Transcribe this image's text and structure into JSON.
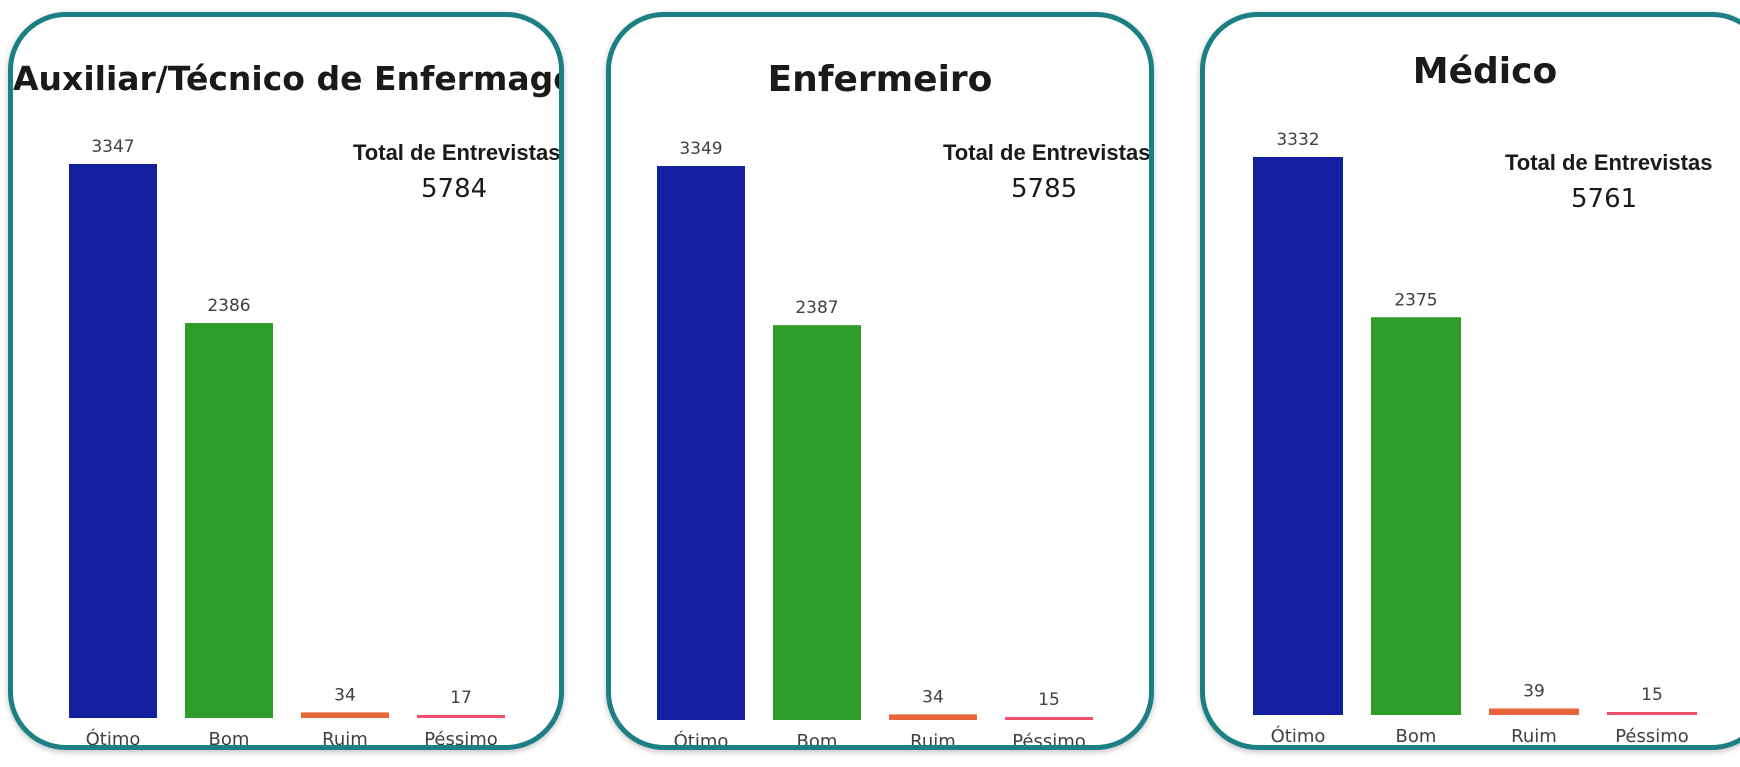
{
  "colors": {
    "border": "#1b7f83",
    "Ótimo": "#131f9e",
    "Bom": "#2e9c28",
    "Ruim": "#e8663a",
    "Péssimo": "#f0506a"
  },
  "total_label": "Total de Entrevistas",
  "chart_data": [
    {
      "type": "bar",
      "title": "Auxiliar/Técnico de Enfermagem",
      "categories": [
        "Ótimo",
        "Bom",
        "Ruim",
        "Péssimo"
      ],
      "values": [
        3347,
        2386,
        34,
        17
      ],
      "total": "5784"
    },
    {
      "type": "bar",
      "title": "Enfermeiro",
      "categories": [
        "Ótimo",
        "Bom",
        "Ruim",
        "Péssimo"
      ],
      "values": [
        3349,
        2387,
        34,
        15
      ],
      "total": "5785"
    },
    {
      "type": "bar",
      "title": "Médico",
      "categories": [
        "Ótimo",
        "Bom",
        "Ruim",
        "Péssimo"
      ],
      "values": [
        3332,
        2375,
        39,
        15
      ],
      "total": "5761"
    }
  ]
}
